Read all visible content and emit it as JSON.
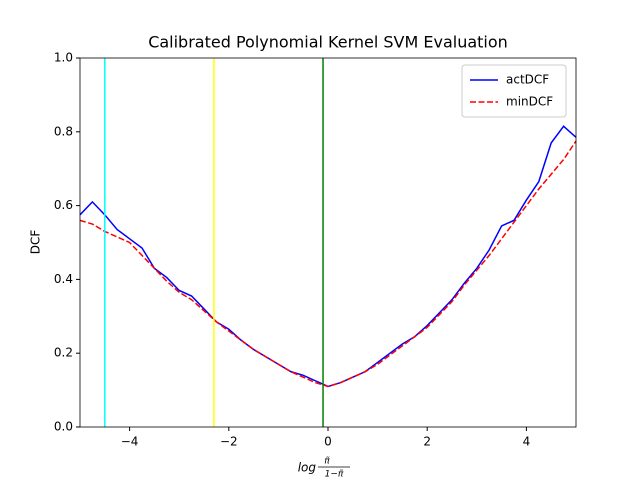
{
  "chart_data": {
    "type": "line",
    "title": "Calibrated Polynomial Kernel SVM Evaluation",
    "xlabel": {
      "prefix": "log",
      "numerator": "π̃",
      "denominator": "1−π̃"
    },
    "ylabel": "DCF",
    "x": [
      -5,
      -4.75,
      -4.5,
      -4.25,
      -4,
      -3.75,
      -3.5,
      -3.25,
      -3,
      -2.75,
      -2.5,
      -2.25,
      -2,
      -1.75,
      -1.5,
      -1.25,
      -1,
      -0.75,
      -0.5,
      -0.25,
      0,
      0.25,
      0.5,
      0.75,
      1,
      1.25,
      1.5,
      1.75,
      2,
      2.25,
      2.5,
      2.75,
      3,
      3.25,
      3.5,
      3.75,
      4,
      4.25,
      4.5,
      4.75,
      5
    ],
    "series": [
      {
        "name": "actDCF",
        "color": "#0000ff",
        "dash": "solid",
        "values": [
          0.575,
          0.61,
          0.575,
          0.535,
          0.51,
          0.485,
          0.43,
          0.405,
          0.37,
          0.355,
          0.32,
          0.285,
          0.265,
          0.235,
          0.21,
          0.19,
          0.17,
          0.15,
          0.14,
          0.125,
          0.11,
          0.12,
          0.135,
          0.15,
          0.175,
          0.2,
          0.225,
          0.245,
          0.275,
          0.31,
          0.345,
          0.39,
          0.43,
          0.48,
          0.545,
          0.56,
          0.615,
          0.665,
          0.77,
          0.815,
          0.785
        ]
      },
      {
        "name": "minDCF",
        "color": "#ff0000",
        "dash": "dashed",
        "values": [
          0.56,
          0.55,
          0.53,
          0.515,
          0.5,
          0.465,
          0.43,
          0.395,
          0.365,
          0.345,
          0.315,
          0.285,
          0.26,
          0.235,
          0.21,
          0.19,
          0.17,
          0.15,
          0.135,
          0.12,
          0.11,
          0.12,
          0.135,
          0.15,
          0.17,
          0.195,
          0.22,
          0.245,
          0.27,
          0.305,
          0.34,
          0.385,
          0.425,
          0.465,
          0.51,
          0.555,
          0.6,
          0.645,
          0.685,
          0.725,
          0.775
        ]
      }
    ],
    "vlines": [
      {
        "x": -4.5,
        "color": "#00ffff"
      },
      {
        "x": -2.3,
        "color": "#ffff00"
      },
      {
        "x": -0.1,
        "color": "#008000"
      }
    ],
    "xlim": [
      -5,
      5
    ],
    "xticks": [
      {
        "value": -4,
        "label": "−4"
      },
      {
        "value": -2,
        "label": "−2"
      },
      0,
      2,
      4
    ],
    "ylim": [
      0,
      1
    ],
    "yticks": [
      {
        "value": 0,
        "label": "0.0"
      },
      0.2,
      0.4,
      0.6,
      0.8,
      {
        "value": 1,
        "label": "1.0"
      }
    ],
    "grid": false,
    "legend": "upper-right"
  }
}
